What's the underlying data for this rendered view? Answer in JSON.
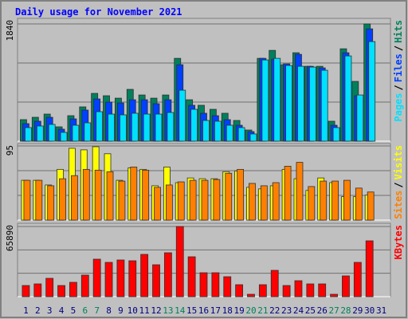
{
  "title": "Daily usage for November 2021",
  "legend_separator": "/",
  "chart_data": [
    {
      "type": "bar",
      "ylim": [
        0,
        1840
      ],
      "yticks": [
        1840
      ],
      "series": [
        {
          "name": "Pages",
          "color": "#00e0ff",
          "values": [
            213,
            238,
            263,
            138,
            250,
            288,
            463,
            425,
            413,
            438,
            425,
            425,
            450,
            800,
            500,
            325,
            313,
            250,
            213,
            113,
            1275,
            1300,
            1188,
            1175,
            1163,
            1113,
            213,
            1338,
            725,
            1563,
            0
          ]
        },
        {
          "name": "Files",
          "color": "#0040ff",
          "values": [
            275,
            313,
            375,
            188,
            350,
            488,
            663,
            613,
            600,
            650,
            650,
            588,
            650,
            1200,
            563,
            438,
            400,
            338,
            250,
            150,
            1300,
            1288,
            1213,
            1363,
            1175,
            1150,
            250,
            1388,
            713,
            1763,
            0
          ]
        },
        {
          "name": "Hits",
          "color": "#00805c",
          "values": [
            338,
            375,
            425,
            225,
            400,
            538,
            750,
            713,
            675,
            813,
            725,
            675,
            725,
            1300,
            650,
            563,
            500,
            438,
            325,
            175,
            1300,
            1425,
            1200,
            1388,
            1175,
            1175,
            313,
            1450,
            938,
            1840,
            0
          ]
        }
      ]
    },
    {
      "type": "bar",
      "ylim": [
        0,
        95
      ],
      "yticks": [
        95
      ],
      "series": [
        {
          "name": "Sites",
          "color": "#ff8000",
          "values": [
            51,
            51,
            44,
            53,
            57,
            65,
            64,
            62,
            50,
            68,
            64,
            42,
            45,
            49,
            51,
            51,
            52,
            60,
            65,
            47,
            44,
            48,
            69,
            74,
            43,
            50,
            50,
            51,
            41,
            36,
            0
          ]
        },
        {
          "name": "Visits",
          "color": "#ffff00",
          "values": [
            51,
            51,
            45,
            65,
            92,
            90,
            94,
            85,
            51,
            67,
            65,
            44,
            68,
            48,
            54,
            53,
            53,
            62,
            63,
            42,
            40,
            44,
            65,
            53,
            38,
            54,
            48,
            30,
            30,
            32,
            0
          ]
        }
      ]
    },
    {
      "type": "bar",
      "ylim": [
        0,
        65890
      ],
      "yticks": [
        65890
      ],
      "categories": [
        1,
        2,
        3,
        4,
        5,
        6,
        7,
        8,
        9,
        10,
        11,
        12,
        13,
        14,
        15,
        16,
        17,
        18,
        19,
        20,
        21,
        22,
        23,
        24,
        25,
        26,
        27,
        28,
        29,
        30,
        31
      ],
      "category_colors": [
        "#000080",
        "#000080",
        "#000080",
        "#000080",
        "#000080",
        "#00805c",
        "#00805c",
        "#000080",
        "#000080",
        "#000080",
        "#000080",
        "#000080",
        "#00805c",
        "#00805c",
        "#000080",
        "#000080",
        "#000080",
        "#000080",
        "#000080",
        "#00805c",
        "#00805c",
        "#000080",
        "#000080",
        "#000080",
        "#000080",
        "#000080",
        "#00805c",
        "#00805c",
        "#000080",
        "#000080",
        "#000080"
      ],
      "series": [
        {
          "name": "KBytes",
          "color": "#ff0000",
          "values": [
            10486,
            11984,
            17227,
            10486,
            13482,
            20223,
            35203,
            32207,
            34454,
            33705,
            39697,
            29960,
            41195,
            65890,
            37450,
            22470,
            22470,
            18725,
            11235,
            2247,
            11235,
            24717,
            10486,
            14980,
            11984,
            11984,
            2247,
            19474,
            32207,
            52430,
            0
          ]
        }
      ]
    }
  ]
}
